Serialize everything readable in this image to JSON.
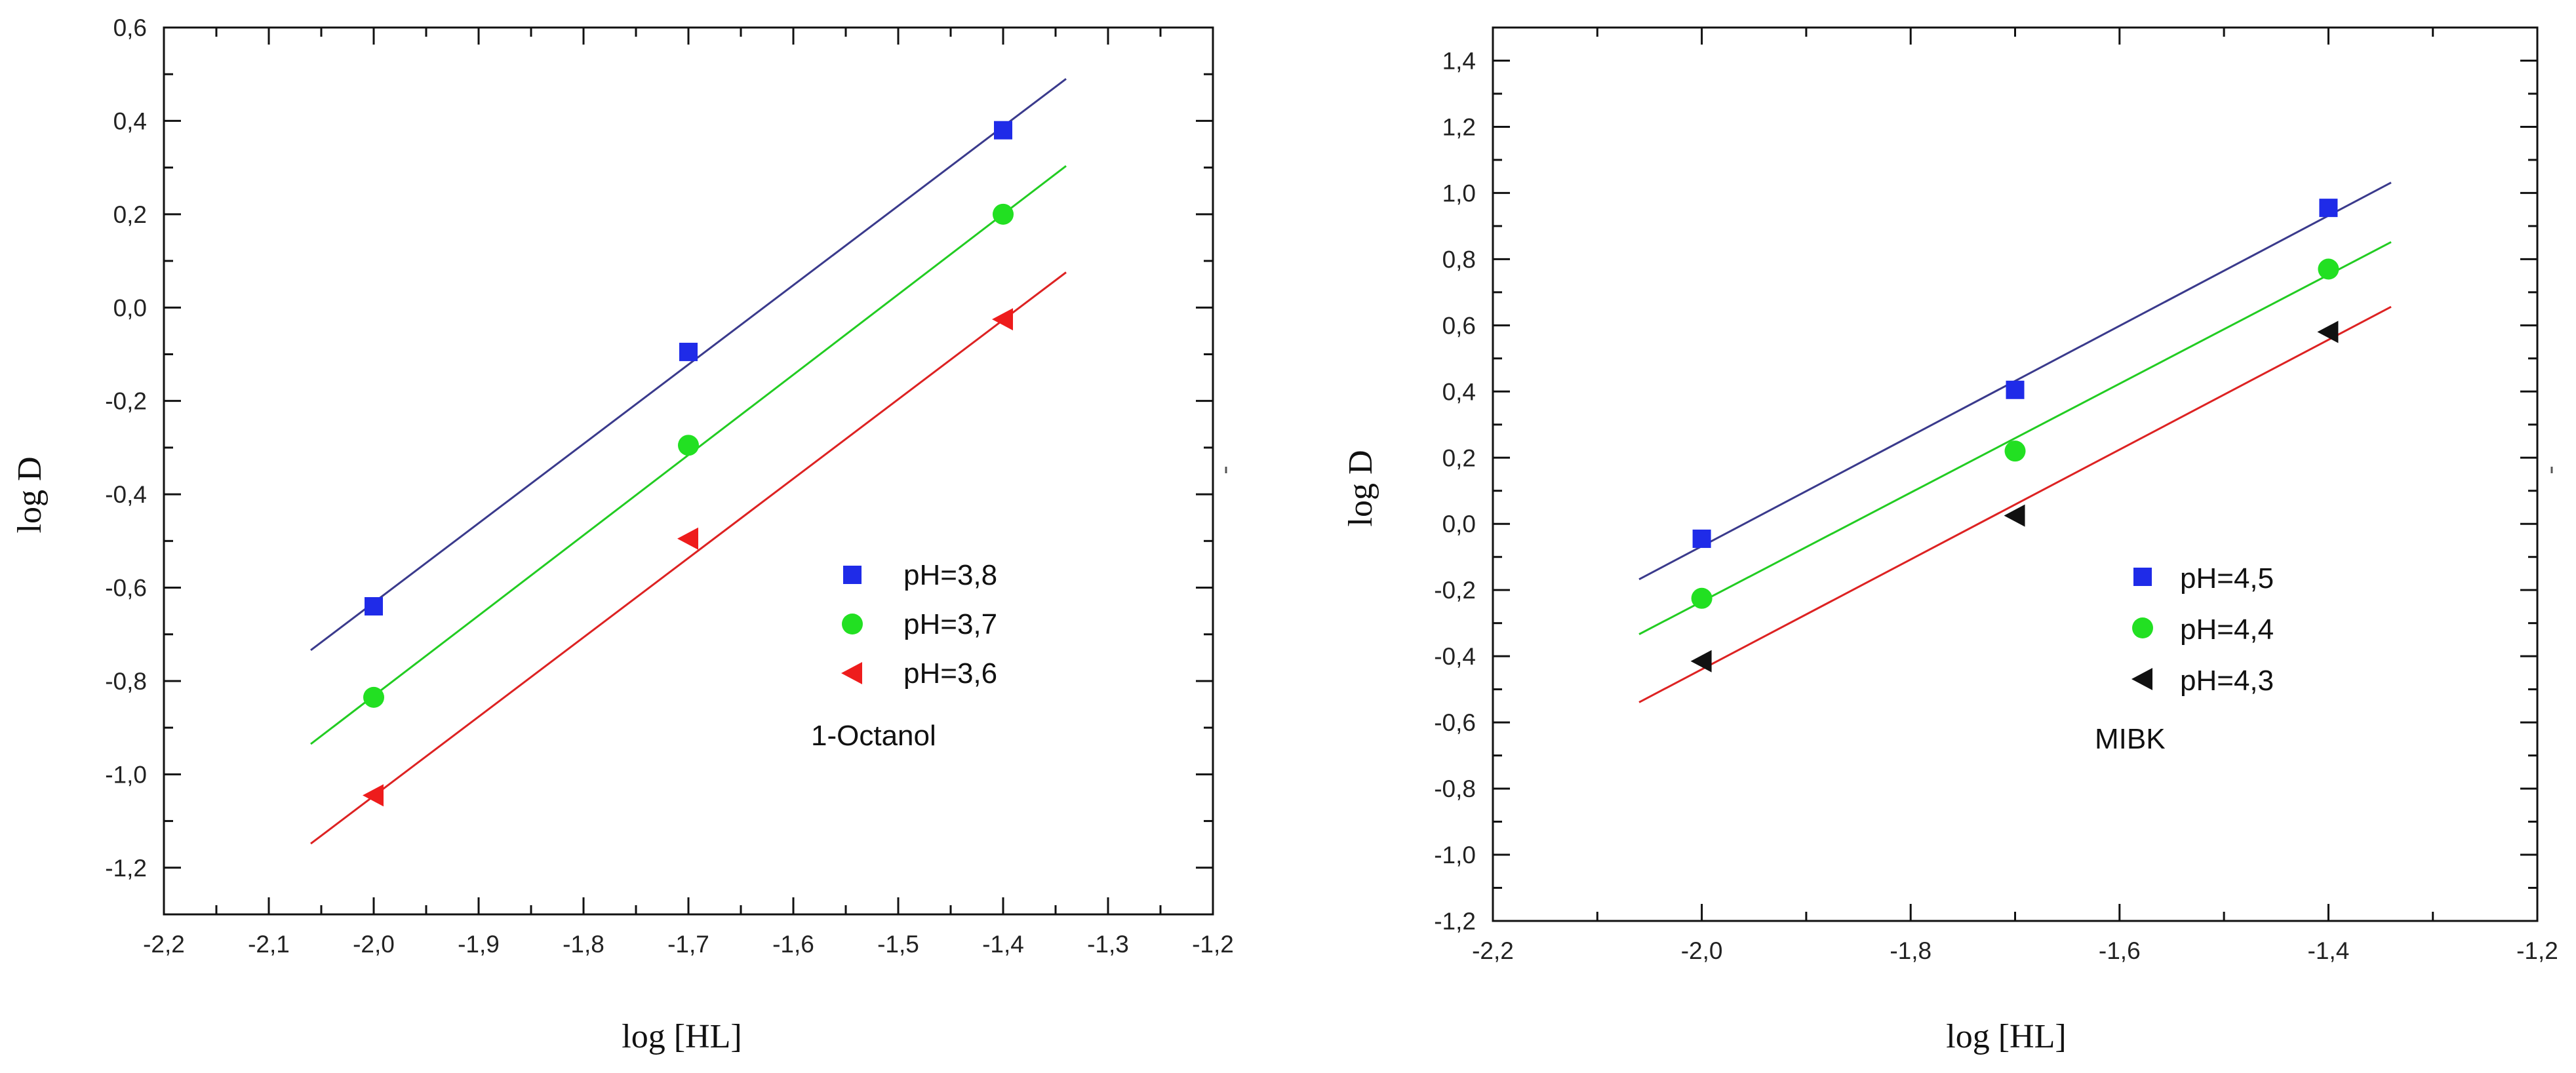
{
  "chart_data": [
    {
      "type": "scatter",
      "annotation": "1-Octanol",
      "xlabel": "log [HL]",
      "ylabel": "log D",
      "xlim": [
        -2.2,
        -1.2
      ],
      "ylim": [
        -1.3,
        0.6
      ],
      "xticks": [
        -2.2,
        -2.1,
        -2.0,
        -1.9,
        -1.8,
        -1.7,
        -1.6,
        -1.5,
        -1.4,
        -1.3,
        -1.2
      ],
      "xtick_labels": [
        "-2,2",
        "-2,1",
        "-2,0",
        "-1,9",
        "-1,8",
        "-1,7",
        "-1,6",
        "-1,5",
        "-1,4",
        "-1,3",
        "-1,2"
      ],
      "yticks": [
        -1.2,
        -1.0,
        -0.8,
        -0.6,
        -0.4,
        -0.2,
        0.0,
        0.2,
        0.4,
        0.6
      ],
      "ytick_labels": [
        "-1,2",
        "-1,0",
        "-0,8",
        "-0,6",
        "-0,4",
        "-0,2",
        "0,0",
        "0,2",
        "0,4",
        "0,6"
      ],
      "fit_x_range": [
        -2.06,
        -1.34
      ],
      "legend_position": "center-right",
      "series": [
        {
          "name": "pH=3,8",
          "marker": "square",
          "color": "#1f2be8",
          "line_color": "#3a3a8c",
          "x": [
            -2.0,
            -1.7,
            -1.4
          ],
          "y": [
            -0.64,
            -0.095,
            0.38
          ],
          "fit": {
            "slope": 1.7,
            "intercept": 2.768
          }
        },
        {
          "name": "pH=3,7",
          "marker": "circle",
          "color": "#22e022",
          "line_color": "#22cc22",
          "x": [
            -2.0,
            -1.7,
            -1.4
          ],
          "y": [
            -0.835,
            -0.295,
            0.2
          ],
          "fit": {
            "slope": 1.72,
            "intercept": 2.6082
          }
        },
        {
          "name": "pH=3,6",
          "marker": "triangle-left",
          "color": "#ee1c1c",
          "line_color": "#dd2222",
          "x": [
            -2.0,
            -1.7,
            -1.4
          ],
          "y": [
            -1.045,
            -0.495,
            -0.025
          ],
          "fit": {
            "slope": 1.7,
            "intercept": 2.3535
          }
        }
      ]
    },
    {
      "type": "scatter",
      "annotation": "MIBK",
      "xlabel": "log [HL]",
      "ylabel": "log D",
      "xlim": [
        -2.2,
        -1.2
      ],
      "ylim": [
        -1.2,
        1.5
      ],
      "xticks": [
        -2.2,
        -2.0,
        -1.8,
        -1.6,
        -1.4,
        -1.2
      ],
      "xtick_labels": [
        "-2,2",
        "-2,0",
        "-1,8",
        "-1,6",
        "-1,4",
        "-1,2"
      ],
      "yticks": [
        -1.2,
        -1.0,
        -0.8,
        -0.6,
        -0.4,
        -0.2,
        0.0,
        0.2,
        0.4,
        0.6,
        0.8,
        1.0,
        1.2,
        1.4
      ],
      "ytick_labels": [
        "-1,2",
        "-1,0",
        "-0,8",
        "-0,6",
        "-0,4",
        "-0,2",
        "0,0",
        "0,2",
        "0,4",
        "0,6",
        "0,8",
        "1,0",
        "1,2",
        "1,4"
      ],
      "fit_x_range": [
        -2.06,
        -1.34
      ],
      "legend_position": "lower-right",
      "series": [
        {
          "name": "pH=4,5",
          "marker": "square",
          "color": "#1f2be8",
          "line_color": "#3a3a8c",
          "x": [
            -2.0,
            -1.7,
            -1.4
          ],
          "y": [
            -0.045,
            0.405,
            0.955
          ],
          "fit": {
            "slope": 1.665,
            "intercept": 3.2624
          }
        },
        {
          "name": "pH=4,4",
          "marker": "circle",
          "color": "#22e022",
          "line_color": "#22cc22",
          "x": [
            -2.0,
            -1.7,
            -1.4
          ],
          "y": [
            -0.225,
            0.22,
            0.77
          ],
          "fit": {
            "slope": 1.646,
            "intercept": 3.0572
          }
        },
        {
          "name": "pH=4,3",
          "marker": "triangle-left",
          "color": "#111111",
          "line_color": "#dd2222",
          "x": [
            -2.0,
            -1.7,
            -1.4
          ],
          "y": [
            -0.415,
            0.025,
            0.58
          ],
          "fit": {
            "slope": 1.66,
            "intercept": 2.8804
          }
        }
      ]
    }
  ]
}
